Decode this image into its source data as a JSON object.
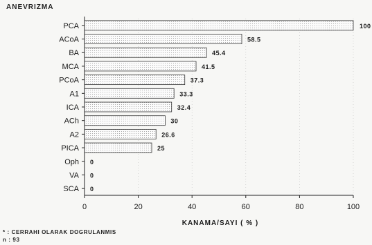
{
  "chart_data": {
    "type": "bar",
    "orientation": "horizontal",
    "title": "ANEVRIZMA",
    "xlabel": "KANAMA/SAYI ( % )",
    "ylabel": "",
    "categories": [
      "PCA",
      "ACoA",
      "BA",
      "MCA",
      "PCoA",
      "A1",
      "ICA",
      "ACh",
      "A2",
      "PICA",
      "Oph",
      "VA",
      "SCA"
    ],
    "values": [
      100,
      58.5,
      45.4,
      41.5,
      37.3,
      33.3,
      32.4,
      30,
      26.6,
      25,
      0,
      0,
      0
    ],
    "value_labels": [
      "100",
      "58.5",
      "45.4",
      "41.5",
      "37.3",
      "33.3",
      "32.4",
      "30",
      "26.6",
      "25",
      "0",
      "0",
      "0"
    ],
    "xlim": [
      0,
      100
    ],
    "xticks": [
      0,
      20,
      40,
      60,
      80,
      100
    ],
    "grid": true,
    "footnotes": [
      "* : CERRAHI OLARAK DOGRULANMIS",
      "n : 93"
    ]
  }
}
